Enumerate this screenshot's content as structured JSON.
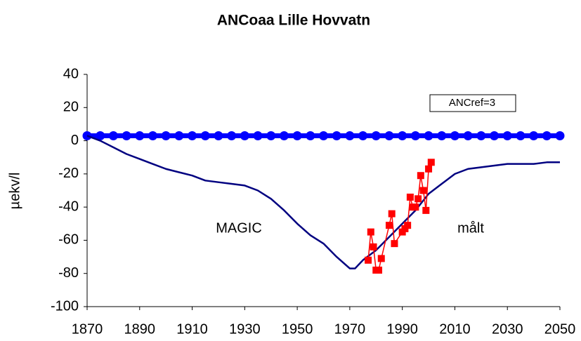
{
  "chart_data": {
    "type": "line",
    "title": "ANCoaa Lille Hovvatn",
    "y_label": "µekv/l",
    "xlim": [
      1870,
      2050
    ],
    "xticks": [
      1870,
      1890,
      1910,
      1930,
      1950,
      1970,
      1990,
      2010,
      2030,
      2050
    ],
    "ylim": [
      -100,
      40
    ],
    "yticks": [
      -100,
      -80,
      -60,
      -40,
      -20,
      0,
      20,
      40
    ],
    "grid": false,
    "series": [
      {
        "name": "ANCref=3",
        "color": "#0000ff",
        "marker": "circle",
        "x": [
          1870,
          1875,
          1880,
          1885,
          1890,
          1895,
          1900,
          1905,
          1910,
          1915,
          1920,
          1925,
          1930,
          1935,
          1940,
          1945,
          1950,
          1955,
          1960,
          1965,
          1970,
          1975,
          1980,
          1985,
          1990,
          1995,
          2000,
          2005,
          2010,
          2015,
          2020,
          2025,
          2030,
          2035,
          2040,
          2045,
          2050
        ],
        "values": [
          3,
          3,
          3,
          3,
          3,
          3,
          3,
          3,
          3,
          3,
          3,
          3,
          3,
          3,
          3,
          3,
          3,
          3,
          3,
          3,
          3,
          3,
          3,
          3,
          3,
          3,
          3,
          3,
          3,
          3,
          3,
          3,
          3,
          3,
          3,
          3,
          3
        ]
      },
      {
        "name": "MAGIC",
        "color": "#000080",
        "marker": "none",
        "x": [
          1870,
          1875,
          1880,
          1885,
          1890,
          1895,
          1900,
          1905,
          1910,
          1915,
          1920,
          1925,
          1930,
          1935,
          1940,
          1945,
          1950,
          1955,
          1960,
          1965,
          1970,
          1972,
          1975,
          1980,
          1985,
          1990,
          1995,
          2000,
          2005,
          2010,
          2015,
          2020,
          2025,
          2030,
          2040,
          2045,
          2050
        ],
        "values": [
          3,
          0,
          -4,
          -8,
          -11,
          -14,
          -17,
          -19,
          -21,
          -24,
          -25,
          -26,
          -27,
          -30,
          -35,
          -42,
          -50,
          -57,
          -62,
          -70,
          -77,
          -77,
          -72,
          -66,
          -58,
          -50,
          -42,
          -32,
          -26,
          -20,
          -17,
          -16,
          -15,
          -14,
          -14,
          -13,
          -13
        ]
      },
      {
        "name": "målt",
        "color": "#ff0000",
        "marker": "square",
        "x": [
          1977,
          1978,
          1979,
          1980,
          1981,
          1982,
          1985,
          1986,
          1987,
          1990,
          1991,
          1992,
          1993,
          1994,
          1995,
          1996,
          1997,
          1998,
          1999,
          2000,
          2001
        ],
        "values": [
          -72,
          -55,
          -64,
          -78,
          -78,
          -71,
          -51,
          -44,
          -62,
          -55,
          -53,
          -51,
          -34,
          -40,
          -40,
          -35,
          -21,
          -30,
          -42,
          -17,
          -13
        ]
      }
    ]
  }
}
